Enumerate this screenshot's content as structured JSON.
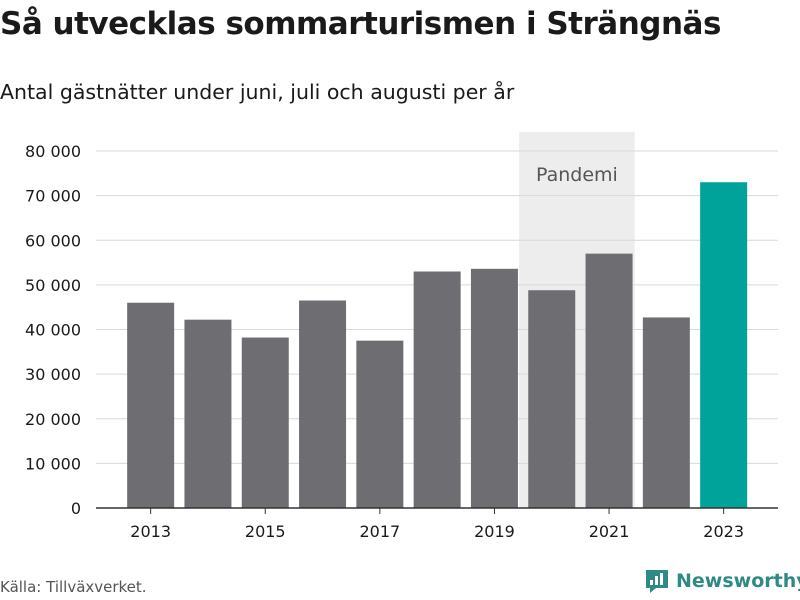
{
  "header": {
    "title": "Så utvecklas sommarturismen i Strängnäs",
    "subtitle": "Antal gästnätter under juni, juli och augusti per år"
  },
  "footer": {
    "source": "Källa: Tillväxverket.",
    "brand": "Newsworthy",
    "brand_icon": "newsworthy-logo-icon"
  },
  "colors": {
    "bar": "#6e6d72",
    "highlight": "#00a39a",
    "band": "#ededed",
    "grid": "#d9d9d9",
    "brand": "#2f8a86"
  },
  "chart_data": {
    "type": "bar",
    "categories": [
      "2013",
      "2014",
      "2015",
      "2016",
      "2017",
      "2018",
      "2019",
      "2020",
      "2021",
      "2022",
      "2023"
    ],
    "values": [
      46000,
      42200,
      38200,
      46500,
      37500,
      53000,
      53600,
      48800,
      57000,
      42700,
      73000
    ],
    "highlight_category": "2023",
    "x_tick_labels": [
      "2013",
      "2015",
      "2017",
      "2019",
      "2021",
      "2023"
    ],
    "y_ticks": [
      0,
      10000,
      20000,
      30000,
      40000,
      50000,
      60000,
      70000,
      80000
    ],
    "y_tick_labels": [
      "0",
      "10 000",
      "20 000",
      "30 000",
      "40 000",
      "50 000",
      "60 000",
      "70 000",
      "80 000"
    ],
    "ylim": [
      0,
      80000
    ],
    "grid": true,
    "annotation": {
      "label": "Pandemi",
      "from": "2020",
      "to": "2021"
    }
  }
}
